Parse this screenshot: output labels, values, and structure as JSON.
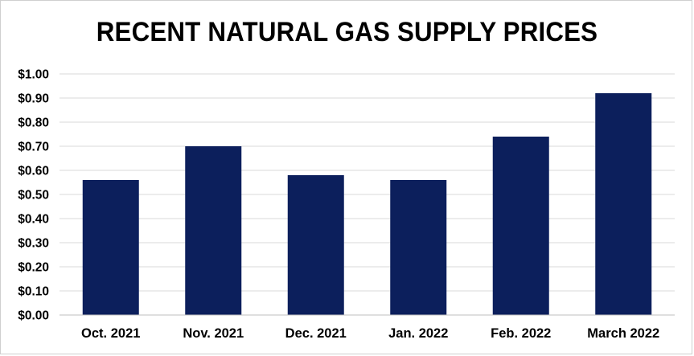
{
  "chart_data": {
    "type": "bar",
    "title": "RECENT NATURAL GAS SUPPLY PRICES",
    "xlabel": "",
    "ylabel": "",
    "categories": [
      "Oct. 2021",
      "Nov. 2021",
      "Dec. 2021",
      "Jan. 2022",
      "Feb. 2022",
      "March 2022"
    ],
    "values": [
      0.56,
      0.7,
      0.58,
      0.56,
      0.74,
      0.92
    ],
    "ylim": [
      0,
      1.0
    ],
    "yticks": [
      "$0.00",
      "$0.10",
      "$0.20",
      "$0.30",
      "$0.40",
      "$0.50",
      "$0.60",
      "$0.70",
      "$0.80",
      "$0.90",
      "$1.00"
    ],
    "grid": true,
    "legend": "none",
    "bar_color": "#0c1f5c",
    "grid_color": "#d9d9d9"
  }
}
